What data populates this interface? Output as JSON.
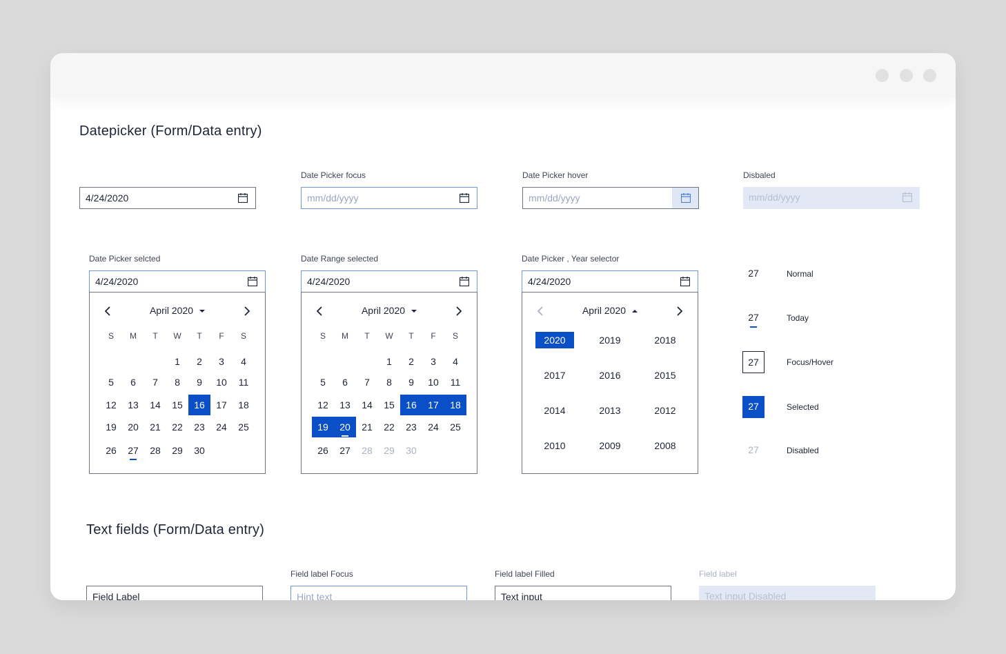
{
  "window": {
    "controls": [
      "minimize",
      "maximize",
      "close"
    ]
  },
  "datepicker": {
    "title": "Datepicker (Form/Data entry)",
    "inputs": [
      {
        "label": "",
        "value": "4/24/2020",
        "placeholder": ""
      },
      {
        "label": "Date Picker focus",
        "value": "",
        "placeholder": "mm/dd/yyyy"
      },
      {
        "label": "Date Picker hover",
        "value": "",
        "placeholder": "mm/dd/yyyy"
      },
      {
        "label": "Disbaled",
        "value": "",
        "placeholder": "mm/dd/yyyy"
      }
    ],
    "calendars": [
      {
        "label": "Date Picker selcted",
        "value": "4/24/2020",
        "month": "April 2020",
        "weekdays": [
          "S",
          "M",
          "T",
          "W",
          "T",
          "F",
          "S"
        ],
        "start_weekday": 3,
        "days": 30,
        "selected": [
          16
        ],
        "today": 27,
        "disabled": []
      },
      {
        "label": "Date Range selected",
        "value": "4/24/2020",
        "month": "April 2020",
        "weekdays": [
          "S",
          "M",
          "T",
          "W",
          "T",
          "F",
          "S"
        ],
        "start_weekday": 3,
        "days": 30,
        "selected": [
          16,
          17,
          18,
          19,
          20
        ],
        "today": 20,
        "disabled": [
          28,
          29,
          30
        ]
      },
      {
        "label": "Date Picker , Year selector",
        "value": "4/24/2020",
        "month": "April 2020",
        "years": [
          "2020",
          "2019",
          "2018",
          "2017",
          "2016",
          "2015",
          "2014",
          "2013",
          "2012",
          "2010",
          "2009",
          "2008"
        ],
        "selected_year": "2020"
      }
    ],
    "states": [
      {
        "day": "27",
        "label": "Normal"
      },
      {
        "day": "27",
        "label": "Today"
      },
      {
        "day": "27",
        "label": "Focus/Hover"
      },
      {
        "day": "27",
        "label": "Selected"
      },
      {
        "day": "27",
        "label": "Disabled"
      }
    ]
  },
  "textfields": {
    "title": "Text fields (Form/Data entry)",
    "fields": [
      {
        "label": "",
        "value": "Field Label",
        "placeholder": ""
      },
      {
        "label": "Field label Focus",
        "value": "",
        "placeholder": "Hint text"
      },
      {
        "label": "Field label Filled",
        "value": "Text input",
        "placeholder": ""
      },
      {
        "label": "Field label",
        "value": "",
        "placeholder": "Text input Disabled"
      }
    ]
  },
  "colors": {
    "accent": "#0b4fc7",
    "border": "#6f7480",
    "focus_border": "#6f97d6",
    "disabled_bg": "#e3e9f4",
    "text": "#1d2433",
    "muted": "#aab2c2"
  }
}
